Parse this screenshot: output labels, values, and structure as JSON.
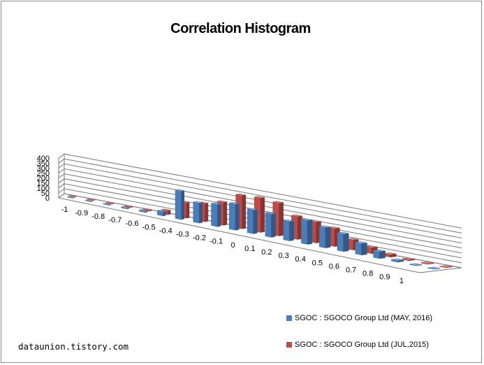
{
  "chart_data": {
    "type": "bar",
    "title": "Correlation Histogram",
    "categories": [
      "-1",
      "-0.9",
      "-0.8",
      "-0.7",
      "-0.6",
      "-0.5",
      "-0.4",
      "-0.3",
      "-0.2",
      "-0.1",
      "0",
      "0.1",
      "0.2",
      "0.3",
      "0.4",
      "0.5",
      "0.6",
      "0.7",
      "0.8",
      "0.9",
      "1"
    ],
    "series": [
      {
        "name": "SGOC : SGOCO Group Ltd (MAY, 2016)",
        "color": "#4a7ebb",
        "values": [
          2,
          3,
          4,
          7,
          12,
          42,
          285,
          200,
          222,
          262,
          238,
          235,
          193,
          240,
          205,
          175,
          115,
          70,
          15,
          3,
          2
        ]
      },
      {
        "name": "SGOC : SGOCO Group Ltd (JUL,2015)",
        "color": "#be4b48",
        "values": [
          3,
          4,
          4,
          6,
          10,
          40,
          155,
          182,
          230,
          335,
          345,
          330,
          230,
          210,
          180,
          100,
          60,
          25,
          10,
          5,
          3
        ]
      }
    ],
    "ylim": [
      0,
      400
    ],
    "yticks": [
      "0",
      "50",
      "100",
      "150",
      "200",
      "250",
      "300",
      "350",
      "400"
    ],
    "grid": true,
    "legend_position": "bottom-right"
  },
  "watermark": "dataunion.tistory.com"
}
